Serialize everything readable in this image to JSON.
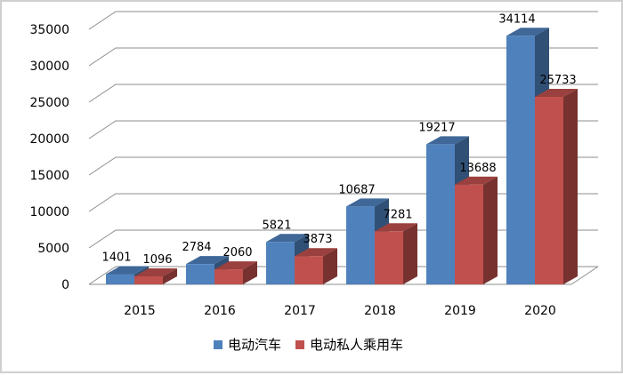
{
  "chart_data": {
    "type": "bar",
    "categories": [
      "2015",
      "2016",
      "2017",
      "2018",
      "2019",
      "2020"
    ],
    "series": [
      {
        "name": "电动汽车",
        "values": [
          1401,
          2784,
          5821,
          10687,
          19217,
          34114
        ],
        "color": "#4f81bd"
      },
      {
        "name": "电动私人乘用车",
        "values": [
          1096,
          2060,
          3873,
          7281,
          13688,
          25733
        ],
        "color": "#c0504d"
      }
    ],
    "ylim": [
      0,
      35000
    ],
    "yticks": [
      "0",
      "5000",
      "10000",
      "15000",
      "20000",
      "25000",
      "30000",
      "35000"
    ],
    "grid": true,
    "legend_position": "bottom",
    "style": "3d-clustered-column"
  }
}
